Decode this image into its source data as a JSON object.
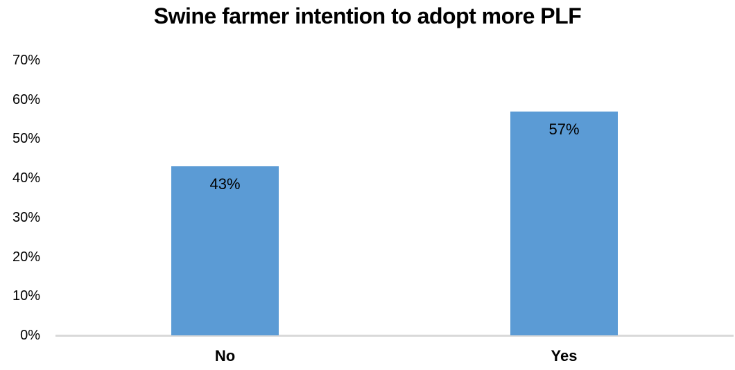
{
  "chart_data": {
    "type": "bar",
    "title": "Swine farmer intention to adopt more PLF",
    "categories": [
      "No",
      "Yes"
    ],
    "values": [
      43,
      57
    ],
    "value_labels": [
      "43%",
      "57%"
    ],
    "y_ticks": [
      "0%",
      "10%",
      "20%",
      "30%",
      "40%",
      "50%",
      "60%",
      "70%"
    ],
    "ylim": [
      0,
      70
    ],
    "xlabel": "",
    "ylabel": "",
    "grid": false,
    "legend": false,
    "data_label_position": "inside-top",
    "bar_color": "#5B9BD5",
    "axis_line_color": "#D9D9D9",
    "text_color": "#000000",
    "background_color": "#FFFFFF"
  }
}
